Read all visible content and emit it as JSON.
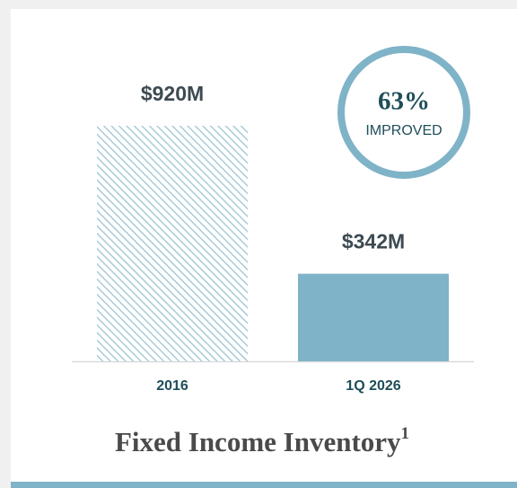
{
  "chart_data": {
    "type": "bar",
    "title": "Fixed Income Inventory",
    "title_footnote": "1",
    "categories": [
      "2016",
      "1Q 2026"
    ],
    "values": [
      920,
      342
    ],
    "value_labels": [
      "$920M",
      "$342M"
    ],
    "colors": [
      "#7fb3c8",
      "#7fb3c8"
    ],
    "hatched": [
      true,
      false
    ],
    "annotation": {
      "value": "63%",
      "text": "IMPROVED"
    }
  }
}
